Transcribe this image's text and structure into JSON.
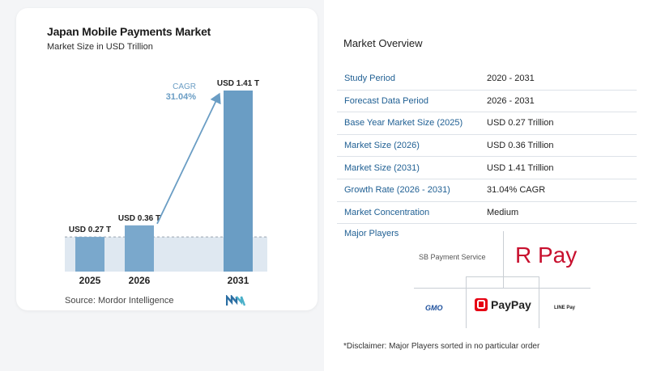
{
  "header": {
    "title": "Japan Mobile Payments Market",
    "subtitle": "Market Size in USD Trillion"
  },
  "chart_data": {
    "type": "bar",
    "categories": [
      "2025",
      "2026",
      "2031"
    ],
    "values": [
      0.27,
      0.36,
      1.41
    ],
    "value_labels": [
      "USD 0.27 T",
      "USD 0.36 T",
      "USD 1.41 T"
    ],
    "title": "Japan Mobile Payments Market",
    "subtitle": "Market Size in USD Trillion",
    "annotation": {
      "label": "CAGR",
      "value": "31.04%"
    },
    "ylim": [
      0,
      1.41
    ],
    "grid": false,
    "colors": {
      "bar": "#6a9dc4",
      "bar_light": "#7aa8cc",
      "shade": "#dfe8f1",
      "arrow": "#6a9dc4",
      "dashed": "#9aa5b1"
    }
  },
  "source": "Source:  Mordor Intelligence",
  "overview": {
    "title": "Market Overview",
    "rows": [
      {
        "key": "Study Period",
        "value": "2020 - 2031"
      },
      {
        "key": "Forecast Data Period",
        "value": "2026 - 2031"
      },
      {
        "key": "Base Year Market Size (2025)",
        "value": "USD 0.27 Trillion"
      },
      {
        "key": "Market Size (2026)",
        "value": "USD 0.36 Trillion"
      },
      {
        "key": "Market Size (2031)",
        "value": "USD 1.41 Trillion"
      },
      {
        "key": "Growth Rate (2026 - 2031)",
        "value": "31.04% CAGR"
      },
      {
        "key": "Market Concentration",
        "value": "Medium"
      }
    ]
  },
  "players": {
    "label": "Major Players",
    "list": [
      "SB Payment Service",
      "R Pay",
      "GMO",
      "PayPay",
      "LINE Pay"
    ]
  },
  "disclaimer": "*Disclaimer: Major Players sorted in no particular order"
}
